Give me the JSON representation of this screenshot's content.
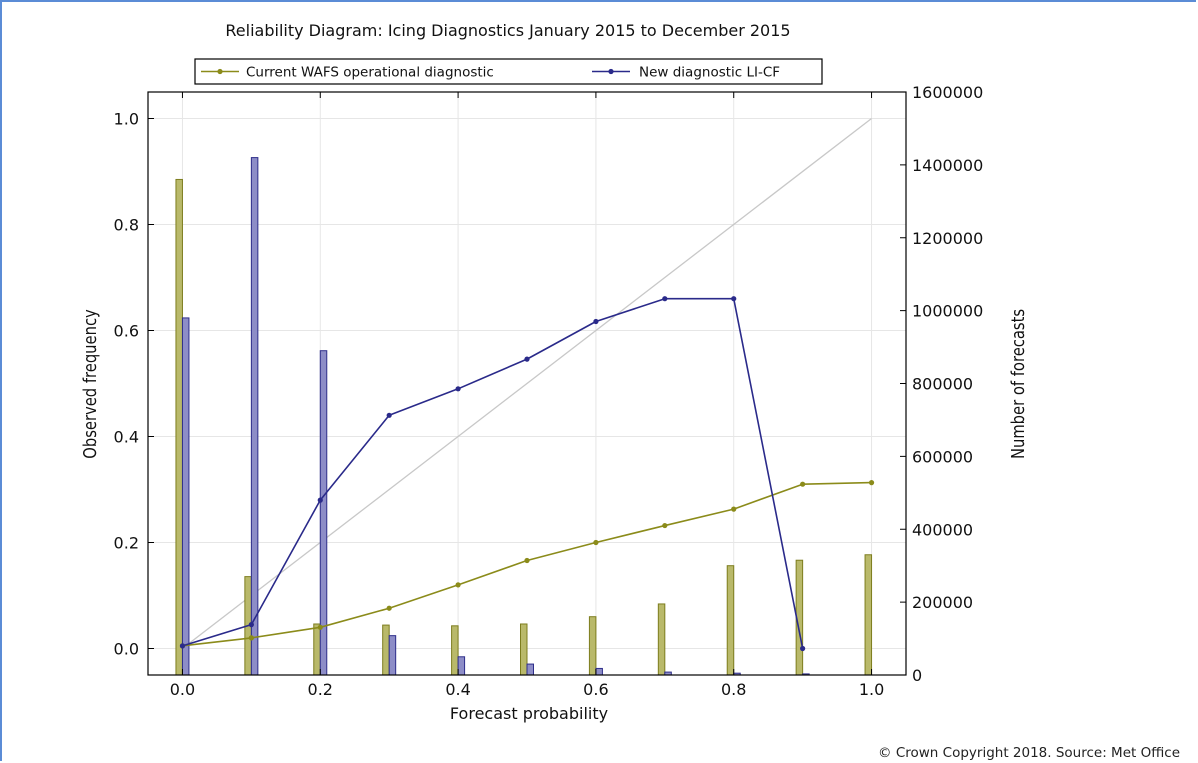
{
  "chart_data": {
    "type": "line",
    "title": "Reliability Diagram: Icing Diagnostics January 2015 to December 2015",
    "xlabel": "Forecast probability",
    "ylabel": "Observed frequency",
    "y2label": "Number of forecasts",
    "xlim": [
      -0.05,
      1.05
    ],
    "ylim": [
      -0.05,
      1.05
    ],
    "y2lim": [
      0,
      1600000
    ],
    "xticks": [
      "0.0",
      "0.2",
      "0.4",
      "0.6",
      "0.8",
      "1.0"
    ],
    "yticks": [
      "0.0",
      "0.2",
      "0.4",
      "0.6",
      "0.8",
      "1.0"
    ],
    "y2ticks": [
      "0",
      "200000",
      "400000",
      "600000",
      "800000",
      "1000000",
      "1200000",
      "1400000",
      "1600000"
    ],
    "grid": true,
    "legend_position": "top-center",
    "series": [
      {
        "name": "Current WAFS operational diagnostic",
        "color": "#8b8b1a",
        "x": [
          0.0,
          0.1,
          0.2,
          0.3,
          0.4,
          0.5,
          0.6,
          0.7,
          0.8,
          0.9,
          1.0
        ],
        "values": [
          0.005,
          0.02,
          0.04,
          0.076,
          0.12,
          0.166,
          0.2,
          0.232,
          0.263,
          0.31,
          0.313
        ],
        "forecast_counts": [
          1360000,
          270000,
          140000,
          137000,
          135000,
          140000,
          160000,
          195000,
          300000,
          315000,
          330000
        ]
      },
      {
        "name": "New diagnostic LI-CF",
        "color": "#2a2a8a",
        "x": [
          0.0,
          0.1,
          0.2,
          0.3,
          0.4,
          0.5,
          0.6,
          0.7,
          0.8,
          0.9
        ],
        "values": [
          0.005,
          0.045,
          0.28,
          0.44,
          0.49,
          0.546,
          0.617,
          0.66,
          0.66,
          0.0
        ],
        "forecast_counts": [
          980000,
          1420000,
          890000,
          108000,
          50000,
          30000,
          18000,
          8000,
          5000,
          3000
        ]
      }
    ],
    "reference_line": {
      "x": [
        0.0,
        1.0
      ],
      "values": [
        0.0,
        1.0
      ],
      "color": "#c8c8c8"
    },
    "bar_colors": {
      "wafs_fill": "#b9b96a",
      "wafs_edge": "#7d7d1e",
      "licf_fill": "#8d8dc7",
      "licf_edge": "#2e2e8a"
    }
  },
  "credit": "© Crown Copyright 2018. Source: Met Office"
}
